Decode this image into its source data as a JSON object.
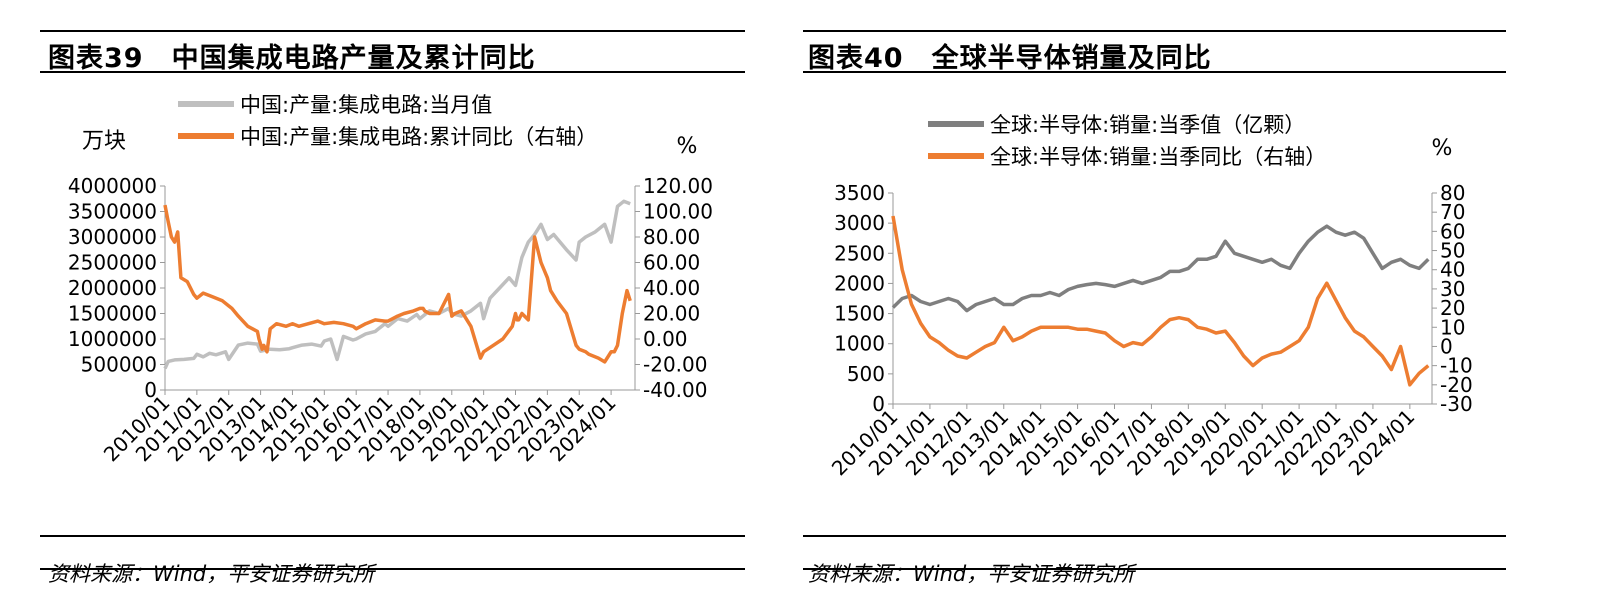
{
  "left": {
    "figure_title": "图表39　中国集成电路产量及累计同比",
    "source": "资料来源：Wind，平安证券研究所",
    "chart_data": {
      "type": "line",
      "ylabel": "万块",
      "y2label": "%",
      "ylim": [
        0,
        4000000
      ],
      "y2lim": [
        -40,
        120
      ],
      "yticks": [
        "4000000",
        "3500000",
        "3000000",
        "2500000",
        "2000000",
        "1500000",
        "1000000",
        "500000",
        "0"
      ],
      "y2ticks": [
        "120.00",
        "100.00",
        "80.00",
        "60.00",
        "40.00",
        "20.00",
        "0.00",
        "-20.00",
        "-40.00"
      ],
      "xticks": [
        "2010/01",
        "2011/01",
        "2012/01",
        "2013/01",
        "2014/01",
        "2015/01",
        "2016/01",
        "2017/01",
        "2018/01",
        "2019/01",
        "2020/01",
        "2021/01",
        "2022/01",
        "2023/01",
        "2024/01"
      ],
      "xrange": [
        2010.0,
        2024.75
      ],
      "series": [
        {
          "name": "中国:产量:集成电路:当月值",
          "color": "#bfbfbf",
          "axis": "left",
          "x": [
            2010.0,
            2010.1,
            2010.3,
            2010.6,
            2010.9,
            2011.0,
            2011.2,
            2011.4,
            2011.6,
            2011.9,
            2012.0,
            2012.3,
            2012.6,
            2012.9,
            2013.0,
            2013.3,
            2013.6,
            2013.9,
            2014.0,
            2014.3,
            2014.6,
            2014.9,
            2015.0,
            2015.2,
            2015.4,
            2015.6,
            2015.9,
            2016.0,
            2016.3,
            2016.6,
            2016.9,
            2017.0,
            2017.3,
            2017.6,
            2017.9,
            2018.0,
            2018.3,
            2018.6,
            2018.9,
            2019.0,
            2019.3,
            2019.6,
            2019.9,
            2020.0,
            2020.2,
            2020.5,
            2020.8,
            2021.0,
            2021.2,
            2021.4,
            2021.6,
            2021.8,
            2022.0,
            2022.2,
            2022.4,
            2022.6,
            2022.9,
            2023.0,
            2023.2,
            2023.5,
            2023.8,
            2024.0,
            2024.2,
            2024.4,
            2024.6
          ],
          "y": [
            420000,
            560000,
            590000,
            600000,
            620000,
            700000,
            650000,
            720000,
            690000,
            750000,
            600000,
            880000,
            920000,
            900000,
            760000,
            800000,
            790000,
            810000,
            830000,
            880000,
            900000,
            860000,
            960000,
            1000000,
            600000,
            1050000,
            980000,
            1000000,
            1100000,
            1150000,
            1300000,
            1250000,
            1400000,
            1350000,
            1480000,
            1400000,
            1550000,
            1500000,
            1600000,
            1500000,
            1450000,
            1550000,
            1700000,
            1400000,
            1800000,
            2000000,
            2200000,
            2050000,
            2600000,
            2900000,
            3050000,
            3250000,
            2950000,
            3050000,
            2900000,
            2750000,
            2550000,
            2900000,
            3000000,
            3100000,
            3250000,
            2900000,
            3600000,
            3700000,
            3650000
          ]
        },
        {
          "name": "中国:产量:集成电路:累计同比（右轴）",
          "color": "#ed7d31",
          "axis": "right",
          "x": [
            2010.0,
            2010.1,
            2010.2,
            2010.3,
            2010.4,
            2010.5,
            2010.7,
            2010.9,
            2011.0,
            2011.2,
            2011.5,
            2011.8,
            2012.0,
            2012.1,
            2012.3,
            2012.6,
            2012.9,
            2012.95,
            2013.05,
            2013.1,
            2013.2,
            2013.3,
            2013.5,
            2013.8,
            2014.0,
            2014.2,
            2014.5,
            2014.8,
            2015.0,
            2015.3,
            2015.6,
            2015.9,
            2016.0,
            2016.3,
            2016.6,
            2016.9,
            2017.0,
            2017.3,
            2017.5,
            2017.8,
            2018.0,
            2018.1,
            2018.15,
            2018.3,
            2018.6,
            2018.9,
            2019.0,
            2019.1,
            2019.3,
            2019.6,
            2019.9,
            2020.0,
            2020.3,
            2020.6,
            2020.9,
            2021.0,
            2021.05,
            2021.1,
            2021.2,
            2021.4,
            2021.6,
            2021.8,
            2022.0,
            2022.1,
            2022.3,
            2022.6,
            2022.9,
            2023.0,
            2023.2,
            2023.3,
            2023.6,
            2023.8,
            2024.0,
            2024.1,
            2024.2,
            2024.35,
            2024.5,
            2024.6
          ],
          "y": [
            105,
            92,
            80,
            76,
            84,
            48,
            45,
            35,
            32,
            36,
            33,
            30,
            26,
            24,
            18,
            10,
            6,
            0,
            -8,
            -5,
            -10,
            8,
            12,
            10,
            12,
            10,
            12,
            14,
            12,
            13,
            12,
            10,
            8,
            12,
            15,
            14,
            14,
            18,
            20,
            22,
            24,
            24,
            22,
            20,
            20,
            35,
            18,
            20,
            22,
            10,
            -15,
            -10,
            -5,
            0,
            10,
            20,
            15,
            15,
            20,
            15,
            80,
            60,
            48,
            38,
            30,
            20,
            -5,
            -8,
            -10,
            -12,
            -15,
            -18,
            -10,
            -10,
            -5,
            20,
            38,
            30
          ]
        }
      ]
    }
  },
  "right": {
    "figure_title": "图表40　全球半导体销量及同比",
    "source": "资料来源：Wind，平安证券研究所",
    "chart_data": {
      "type": "line",
      "ylabel": "",
      "y2label": "%",
      "ylim": [
        0,
        3500
      ],
      "y2lim": [
        -30,
        80
      ],
      "yticks": [
        "3500",
        "3000",
        "2500",
        "2000",
        "1500",
        "1000",
        "500",
        "0"
      ],
      "y2ticks": [
        "80",
        "70",
        "60",
        "50",
        "40",
        "30",
        "20",
        "10",
        "0",
        "-10",
        "-20",
        "-30"
      ],
      "xticks": [
        "2010/01",
        "2011/01",
        "2012/01",
        "2013/01",
        "2014/01",
        "2015/01",
        "2016/01",
        "2017/01",
        "2018/01",
        "2019/01",
        "2020/01",
        "2021/01",
        "2022/01",
        "2023/01",
        "2024/01"
      ],
      "xrange": [
        2010.0,
        2024.6
      ],
      "series": [
        {
          "name": "全球:半导体:销量:当季值（亿颗）",
          "color": "#7f7f7f",
          "axis": "left",
          "x": [
            2010.0,
            2010.25,
            2010.5,
            2010.75,
            2011.0,
            2011.25,
            2011.5,
            2011.75,
            2012.0,
            2012.25,
            2012.5,
            2012.75,
            2013.0,
            2013.25,
            2013.5,
            2013.75,
            2014.0,
            2014.25,
            2014.5,
            2014.75,
            2015.0,
            2015.25,
            2015.5,
            2015.75,
            2016.0,
            2016.25,
            2016.5,
            2016.75,
            2017.0,
            2017.25,
            2017.5,
            2017.75,
            2018.0,
            2018.25,
            2018.5,
            2018.75,
            2019.0,
            2019.25,
            2019.5,
            2019.75,
            2020.0,
            2020.25,
            2020.5,
            2020.75,
            2021.0,
            2021.25,
            2021.5,
            2021.75,
            2022.0,
            2022.25,
            2022.5,
            2022.75,
            2023.0,
            2023.25,
            2023.5,
            2023.75,
            2024.0,
            2024.25,
            2024.5
          ],
          "y": [
            1600,
            1750,
            1800,
            1700,
            1650,
            1700,
            1750,
            1700,
            1550,
            1650,
            1700,
            1750,
            1650,
            1650,
            1750,
            1800,
            1800,
            1850,
            1800,
            1900,
            1950,
            1980,
            2000,
            1980,
            1950,
            2000,
            2050,
            2000,
            2050,
            2100,
            2200,
            2200,
            2250,
            2400,
            2400,
            2450,
            2700,
            2500,
            2450,
            2400,
            2350,
            2400,
            2300,
            2250,
            2500,
            2700,
            2850,
            2950,
            2850,
            2800,
            2850,
            2750,
            2500,
            2250,
            2350,
            2400,
            2300,
            2250,
            2400
          ]
        },
        {
          "name": "全球:半导体:销量:当季同比（右轴）",
          "color": "#ed7d31",
          "axis": "right",
          "x": [
            2010.0,
            2010.25,
            2010.5,
            2010.75,
            2011.0,
            2011.25,
            2011.5,
            2011.75,
            2012.0,
            2012.25,
            2012.5,
            2012.75,
            2013.0,
            2013.25,
            2013.5,
            2013.75,
            2014.0,
            2014.25,
            2014.5,
            2014.75,
            2015.0,
            2015.25,
            2015.5,
            2015.75,
            2016.0,
            2016.25,
            2016.5,
            2016.75,
            2017.0,
            2017.25,
            2017.5,
            2017.75,
            2018.0,
            2018.25,
            2018.5,
            2018.75,
            2019.0,
            2019.25,
            2019.5,
            2019.75,
            2020.0,
            2020.25,
            2020.5,
            2020.75,
            2021.0,
            2021.25,
            2021.5,
            2021.75,
            2022.0,
            2022.25,
            2022.5,
            2022.75,
            2023.0,
            2023.25,
            2023.5,
            2023.75,
            2024.0,
            2024.25,
            2024.5
          ],
          "y": [
            68,
            40,
            22,
            12,
            5,
            2,
            -2,
            -5,
            -6,
            -3,
            0,
            2,
            10,
            3,
            5,
            8,
            10,
            10,
            10,
            10,
            9,
            9,
            8,
            7,
            3,
            0,
            2,
            1,
            5,
            10,
            14,
            15,
            14,
            10,
            9,
            7,
            8,
            2,
            -5,
            -10,
            -6,
            -4,
            -3,
            0,
            3,
            10,
            25,
            33,
            24,
            15,
            8,
            5,
            0,
            -5,
            -12,
            0,
            -20,
            -14,
            -10
          ]
        }
      ]
    }
  }
}
